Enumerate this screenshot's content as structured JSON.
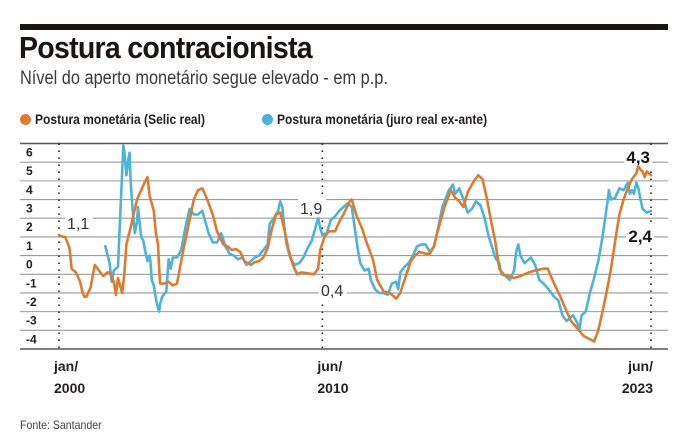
{
  "header": {
    "title": "Postura contracionista",
    "subtitle": "Nível do aperto monetário segue elevado - em p.p."
  },
  "footer": {
    "source": "Fonte: Santander"
  },
  "colors": {
    "selic_real": "#e07a2e",
    "juro_ex_ante": "#4ab4dc",
    "grid": "#9a9a9a",
    "text": "#231f20"
  },
  "chart_data": {
    "type": "line",
    "title": "Postura contracionista",
    "subtitle": "Nível do aperto monetário segue elevado - em p.p.",
    "xlabel": "",
    "ylabel": "",
    "x_unit": "months since jan/2000",
    "xlim": [
      0,
      281
    ],
    "ylim": [
      -5,
      6
    ],
    "yticks": [
      6,
      5,
      4,
      3,
      2,
      1,
      0,
      -1,
      -2,
      -3,
      -4
    ],
    "ytick_labels": [
      "6",
      "5",
      "4",
      "3",
      "2",
      "1",
      "0",
      "-1",
      "-2",
      "-3",
      "-4"
    ],
    "xticks": [
      {
        "x": 0,
        "label_top": "jan/",
        "label_bottom": "2000"
      },
      {
        "x": 125,
        "label_top": "jun/",
        "label_bottom": "2010"
      },
      {
        "x": 281,
        "label_top": "jun/",
        "label_bottom": "2023"
      }
    ],
    "grid": true,
    "legend": "top-left",
    "series": [
      {
        "name": "Postura monetária (Selic real)",
        "color": "#e07a2e",
        "points": [
          [
            0,
            1.1
          ],
          [
            2,
            1.0
          ],
          [
            3,
            1.0
          ],
          [
            5,
            0.4
          ],
          [
            6,
            -0.7
          ],
          [
            8,
            -0.9
          ],
          [
            10,
            -1.4
          ],
          [
            11,
            -1.9
          ],
          [
            12,
            -2.2
          ],
          [
            13,
            -2.2
          ],
          [
            15,
            -1.7
          ],
          [
            17,
            -0.5
          ],
          [
            19,
            -0.8
          ],
          [
            21,
            -1.1
          ],
          [
            23,
            -0.9
          ],
          [
            24,
            -0.9
          ],
          [
            26,
            -1.4
          ],
          [
            27,
            -2.1
          ],
          [
            28,
            -1.2
          ],
          [
            30,
            -2.0
          ],
          [
            31,
            -1.0
          ],
          [
            32,
            0.6
          ],
          [
            34,
            1.5
          ],
          [
            37,
            3.0
          ],
          [
            39,
            3.5
          ],
          [
            41,
            4.0
          ],
          [
            42,
            4.2
          ],
          [
            43,
            3.2
          ],
          [
            45,
            2.4
          ],
          [
            46,
            1.2
          ],
          [
            47,
            0.6
          ],
          [
            47.5,
            -0.6
          ],
          [
            48,
            -1.5
          ],
          [
            50,
            -1.5
          ],
          [
            52,
            -1.4
          ],
          [
            54,
            -1.6
          ],
          [
            56,
            -1.5
          ],
          [
            57,
            -0.9
          ],
          [
            59,
            0.3
          ],
          [
            62,
            1.9
          ],
          [
            64,
            3.0
          ],
          [
            66,
            3.5
          ],
          [
            68,
            3.6
          ],
          [
            70,
            3.1
          ],
          [
            73,
            2.2
          ],
          [
            75,
            1.3
          ],
          [
            78,
            0.6
          ],
          [
            80,
            0.5
          ],
          [
            82,
            0.3
          ],
          [
            84,
            0.35
          ],
          [
            86,
            0.2
          ],
          [
            88,
            -0.3
          ],
          [
            91,
            -0.5
          ],
          [
            93,
            -0.35
          ],
          [
            95,
            -0.3
          ],
          [
            97,
            -0.1
          ],
          [
            99,
            0.4
          ],
          [
            101,
            1.4
          ],
          [
            103,
            2.2
          ],
          [
            105,
            2.3
          ],
          [
            107,
            1.4
          ],
          [
            109,
            0.3
          ],
          [
            111,
            -0.5
          ],
          [
            113,
            -1.0
          ],
          [
            115,
            -0.9
          ],
          [
            118,
            -0.95
          ],
          [
            121,
            -1.0
          ],
          [
            123,
            -0.7
          ],
          [
            124,
            0.3
          ],
          [
            126,
            1.0
          ],
          [
            128,
            1.3
          ],
          [
            131,
            1.3
          ],
          [
            133,
            1.8
          ],
          [
            135,
            2.2
          ],
          [
            138,
            2.9
          ],
          [
            139,
            3.0
          ],
          [
            141,
            2.2
          ],
          [
            144,
            1.4
          ],
          [
            146,
            0.7
          ],
          [
            149,
            -0.2
          ],
          [
            151,
            -1.3
          ],
          [
            154,
            -1.9
          ],
          [
            157,
            -2.0
          ],
          [
            160,
            -2.3
          ],
          [
            162,
            -2.0
          ],
          [
            164,
            -1.3
          ],
          [
            167,
            -0.3
          ],
          [
            169,
            0.0
          ],
          [
            171,
            0.2
          ],
          [
            174,
            0.1
          ],
          [
            176,
            0.1
          ],
          [
            178,
            0.5
          ],
          [
            180,
            1.4
          ],
          [
            183,
            2.6
          ],
          [
            186,
            3.5
          ],
          [
            188,
            3.1
          ],
          [
            190,
            2.9
          ],
          [
            192,
            2.6
          ],
          [
            194,
            3.4
          ],
          [
            197,
            4.0
          ],
          [
            199,
            4.3
          ],
          [
            201,
            4.1
          ],
          [
            203,
            3.1
          ],
          [
            205,
            1.9
          ],
          [
            207,
            0.8
          ],
          [
            209,
            -0.7
          ],
          [
            211,
            -1.0
          ],
          [
            216,
            -1.2
          ],
          [
            219,
            -1.1
          ],
          [
            223,
            -0.9
          ],
          [
            226,
            -0.8
          ],
          [
            230,
            -0.7
          ],
          [
            232,
            -0.7
          ],
          [
            235,
            -1.5
          ],
          [
            238,
            -2.2
          ],
          [
            241,
            -3.0
          ],
          [
            243,
            -3.5
          ],
          [
            246,
            -3.9
          ],
          [
            249,
            -4.3
          ],
          [
            254,
            -4.6
          ],
          [
            256,
            -4.0
          ],
          [
            258,
            -3.0
          ],
          [
            260,
            -1.9
          ],
          [
            262,
            -0.7
          ],
          [
            264,
            0.8
          ],
          [
            266,
            2.2
          ],
          [
            268,
            3.0
          ],
          [
            270,
            3.6
          ],
          [
            272,
            4.1
          ],
          [
            274,
            4.4
          ],
          [
            275,
            4.8
          ],
          [
            276,
            4.6
          ],
          [
            277,
            4.5
          ],
          [
            278,
            4.2
          ],
          [
            279,
            4.5
          ],
          [
            281,
            4.3
          ]
        ],
        "end_label": "4,3"
      },
      {
        "name": "Postura monetária (juro real ex-ante)",
        "color": "#4ab4dc",
        "points": [
          [
            22,
            0.5
          ],
          [
            24,
            -0.4
          ],
          [
            25,
            -1.4
          ],
          [
            26,
            -0.8
          ],
          [
            28,
            -0.6
          ],
          [
            29,
            2.0
          ],
          [
            30,
            4.5
          ],
          [
            30.5,
            5.9
          ],
          [
            31,
            5.6
          ],
          [
            32,
            4.3
          ],
          [
            33,
            5.2
          ],
          [
            33.5,
            5.5
          ],
          [
            34,
            4.0
          ],
          [
            35,
            2.4
          ],
          [
            36,
            1.2
          ],
          [
            37,
            1.8
          ],
          [
            37.5,
            2.6
          ],
          [
            38,
            2.0
          ],
          [
            39,
            1.0
          ],
          [
            40,
            0.8
          ],
          [
            41,
            0.2
          ],
          [
            42,
            -0.3
          ],
          [
            43,
            0.0
          ],
          [
            43.5,
            -0.4
          ],
          [
            44,
            -1.3
          ],
          [
            45,
            -1.6
          ],
          [
            46,
            -2.3
          ],
          [
            47,
            -2.8
          ],
          [
            47.5,
            -3.0
          ],
          [
            48,
            -2.6
          ],
          [
            49,
            -2.2
          ],
          [
            51,
            -1.9
          ],
          [
            52,
            -0.2
          ],
          [
            53,
            -0.7
          ],
          [
            54,
            -0.1
          ],
          [
            56,
            -0.1
          ],
          [
            58,
            0.3
          ],
          [
            60,
            1.5
          ],
          [
            62,
            2.5
          ],
          [
            64,
            2.2
          ],
          [
            66,
            2.2
          ],
          [
            68,
            2.4
          ],
          [
            69,
            2.0
          ],
          [
            71,
            1.2
          ],
          [
            73,
            0.7
          ],
          [
            75,
            0.7
          ],
          [
            77,
            1.2
          ],
          [
            79,
            0.5
          ],
          [
            81,
            0.1
          ],
          [
            83,
            0.0
          ],
          [
            85,
            -0.2
          ],
          [
            87,
            -0.1
          ],
          [
            89,
            -0.5
          ],
          [
            91,
            -0.3
          ],
          [
            93,
            -0.1
          ],
          [
            95,
            0.0
          ],
          [
            97,
            0.3
          ],
          [
            99,
            0.6
          ],
          [
            100,
            1.7
          ],
          [
            102,
            2.0
          ],
          [
            104,
            2.4
          ],
          [
            105,
            2.9
          ],
          [
            106,
            2.6
          ],
          [
            107,
            1.5
          ],
          [
            108,
            0.6
          ],
          [
            110,
            -0.2
          ],
          [
            112,
            -0.5
          ],
          [
            114,
            -0.4
          ],
          [
            116,
            -0.1
          ],
          [
            118,
            0.4
          ],
          [
            120,
            0.8
          ],
          [
            121,
            1.2
          ],
          [
            122,
            1.6
          ],
          [
            123,
            2.0
          ],
          [
            124,
            1.5
          ],
          [
            125,
            1.1
          ],
          [
            127,
            1.2
          ],
          [
            129,
            1.9
          ],
          [
            131,
            2.1
          ],
          [
            133,
            2.4
          ],
          [
            135,
            2.6
          ],
          [
            137,
            2.8
          ],
          [
            139,
            2.6
          ],
          [
            140,
            1.8
          ],
          [
            142,
            0.2
          ],
          [
            143,
            -0.4
          ],
          [
            145,
            -0.8
          ],
          [
            147,
            -0.7
          ],
          [
            148,
            -1.3
          ],
          [
            150,
            -1.8
          ],
          [
            152,
            -2.0
          ],
          [
            154,
            -2.0
          ],
          [
            156,
            -2.1
          ],
          [
            158,
            -1.5
          ],
          [
            160,
            -1.4
          ],
          [
            161,
            -1.8
          ],
          [
            162,
            -0.9
          ],
          [
            164,
            -0.6
          ],
          [
            166,
            -0.4
          ],
          [
            168,
            0.0
          ],
          [
            170,
            0.5
          ],
          [
            172,
            0.6
          ],
          [
            174,
            0.6
          ],
          [
            176,
            0.2
          ],
          [
            178,
            0.5
          ],
          [
            180,
            1.5
          ],
          [
            182,
            2.6
          ],
          [
            185,
            3.5
          ],
          [
            187,
            3.8
          ],
          [
            188,
            3.3
          ],
          [
            190,
            3.6
          ],
          [
            192,
            3.0
          ],
          [
            194,
            2.3
          ],
          [
            196,
            2.5
          ],
          [
            198,
            2.9
          ],
          [
            200,
            2.7
          ],
          [
            202,
            2.0
          ],
          [
            204,
            1.0
          ],
          [
            206,
            0.3
          ],
          [
            207,
            -0.1
          ],
          [
            209,
            -0.4
          ],
          [
            210,
            -1.0
          ],
          [
            212,
            -1.1
          ],
          [
            214,
            -1.3
          ],
          [
            216,
            -0.8
          ],
          [
            217,
            0.2
          ],
          [
            218,
            0.6
          ],
          [
            219,
            0.0
          ],
          [
            221,
            -0.4
          ],
          [
            222,
            -0.3
          ],
          [
            224,
            -0.1
          ],
          [
            226,
            -0.5
          ],
          [
            228,
            -1.3
          ],
          [
            230,
            -1.5
          ],
          [
            233,
            -1.9
          ],
          [
            235,
            -2.2
          ],
          [
            237,
            -2.4
          ],
          [
            239,
            -3.2
          ],
          [
            241,
            -3.5
          ],
          [
            243,
            -3.3
          ],
          [
            244,
            -3.2
          ],
          [
            246,
            -3.6
          ],
          [
            247,
            -4.0
          ],
          [
            248,
            -3.2
          ],
          [
            250,
            -3.0
          ],
          [
            252,
            -2.0
          ],
          [
            254,
            -1.2
          ],
          [
            256,
            -0.3
          ],
          [
            258,
            1.0
          ],
          [
            260,
            2.6
          ],
          [
            261,
            3.5
          ],
          [
            262,
            3.0
          ],
          [
            264,
            3.1
          ],
          [
            266,
            3.6
          ],
          [
            268,
            3.5
          ],
          [
            270,
            3.9
          ],
          [
            271,
            3.3
          ],
          [
            272,
            3.5
          ],
          [
            273,
            3.3
          ],
          [
            274,
            3.9
          ],
          [
            275,
            3.6
          ],
          [
            276,
            3.0
          ],
          [
            277,
            2.5
          ],
          [
            279,
            2.3
          ],
          [
            281,
            2.4
          ]
        ],
        "end_label": "2,4"
      }
    ],
    "annotations": [
      {
        "text": "1,1",
        "x": 0,
        "y": 1.1,
        "style": "light"
      },
      {
        "text": "1,9",
        "x": 125,
        "y": 1.9,
        "style": "light"
      },
      {
        "text": "0,4",
        "x": 125,
        "y": 0.4,
        "style": "light"
      },
      {
        "text": "4,3",
        "x": 281,
        "y": 4.3,
        "style": "bold"
      },
      {
        "text": "2,4",
        "x": 281,
        "y": 2.4,
        "style": "bold"
      }
    ]
  }
}
